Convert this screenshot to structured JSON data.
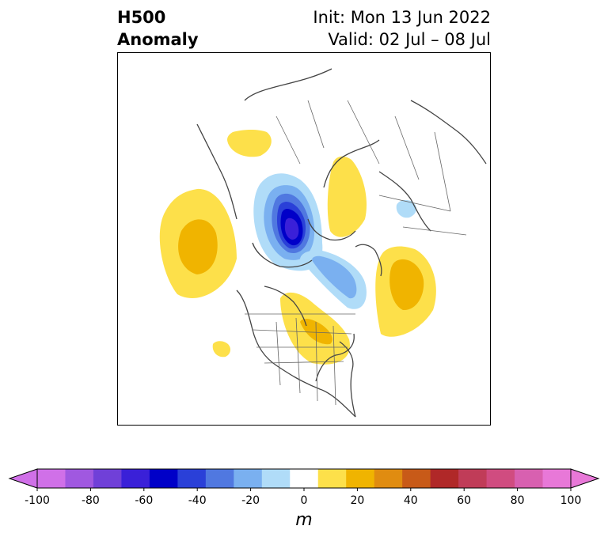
{
  "title": {
    "left_line1": "H500",
    "left_line2": "Anomaly",
    "right_line1": "Init: Mon 13 Jun 2022",
    "right_line2": "Valid: 02 Jul – 08 Jul"
  },
  "map": {
    "projection": "north-polar-stereographic",
    "field": "500 hPa geopotential height anomaly",
    "anomalies": [
      {
        "name": "north-pacific-ridge",
        "sign": "positive",
        "peak_m": 30
      },
      {
        "name": "arctic-trough",
        "sign": "negative",
        "peak_m": -70
      },
      {
        "name": "eastern-canada-trough-extension",
        "sign": "negative",
        "peak_m": -30
      },
      {
        "name": "central-canada-great-lakes-ridge",
        "sign": "positive",
        "peak_m": 20
      },
      {
        "name": "north-atlantic-ridge",
        "sign": "positive",
        "peak_m": 30
      },
      {
        "name": "scandinavia-ridge",
        "sign": "positive",
        "peak_m": 20
      },
      {
        "name": "siberia-ridge",
        "sign": "positive",
        "peak_m": 20
      },
      {
        "name": "western-russia-trough",
        "sign": "negative",
        "peak_m": -20
      },
      {
        "name": "pacific-small-ridge",
        "sign": "positive",
        "peak_m": 10
      }
    ]
  },
  "colorbar": {
    "unit": "m",
    "ticks": [
      "-100",
      "-80",
      "-60",
      "-40",
      "-20",
      "0",
      "20",
      "40",
      "60",
      "80",
      "100"
    ],
    "levels": [
      -100,
      -90,
      -80,
      -70,
      -60,
      -50,
      -40,
      -30,
      -20,
      -10,
      10,
      20,
      30,
      40,
      50,
      60,
      70,
      80,
      90,
      100
    ],
    "colors": [
      "#d070e8",
      "#a058e0",
      "#7040d8",
      "#3a20d8",
      "#0000c8",
      "#2a40d8",
      "#5078e0",
      "#7ab0f0",
      "#b0dcf8",
      "#ffffff",
      "#fde04a",
      "#f0b400",
      "#e08c10",
      "#c85a18",
      "#b02828",
      "#c03c58",
      "#d04c80",
      "#d860b0",
      "#e878d8"
    ],
    "under_color": "#d070e8",
    "over_color": "#e878d8"
  }
}
